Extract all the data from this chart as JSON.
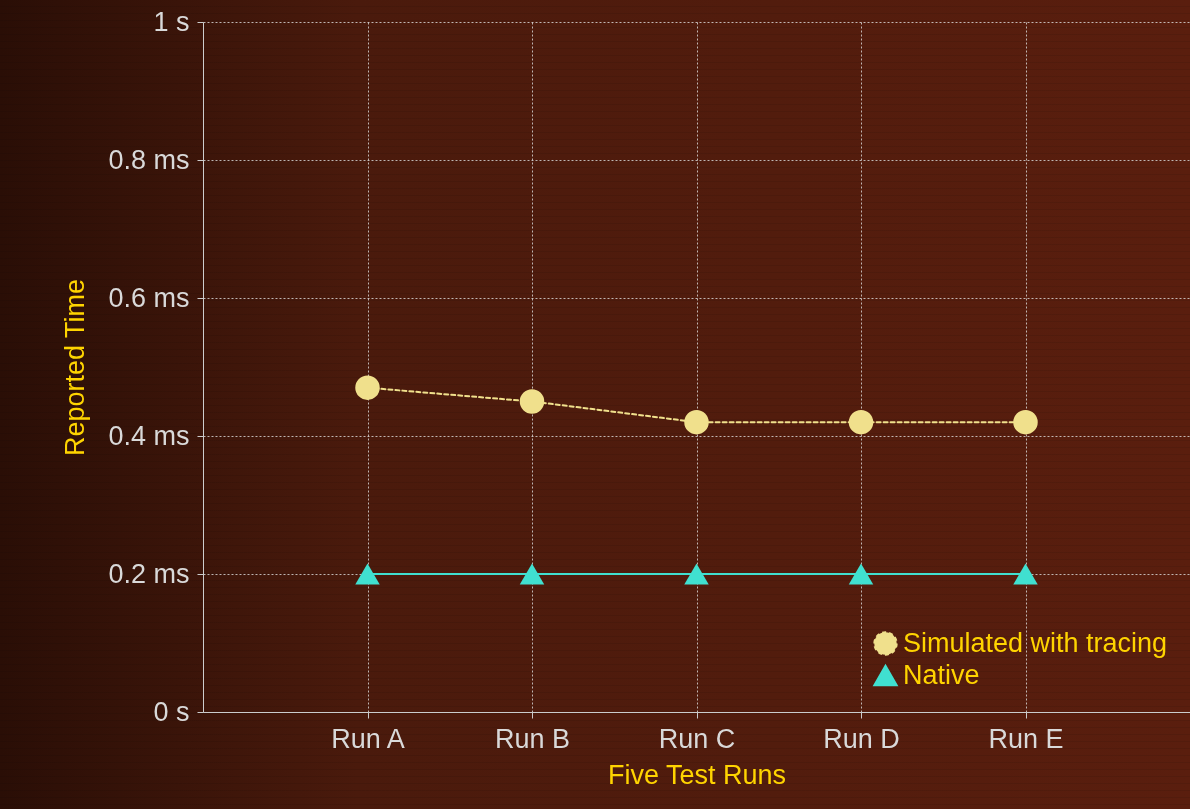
{
  "chart_data": {
    "type": "line",
    "xlabel": "Five Test Runs",
    "ylabel": "Reported Time",
    "categories": [
      "Run A",
      "Run B",
      "Run C",
      "Run D",
      "Run E"
    ],
    "series": [
      {
        "name": "Simulated with tracing",
        "color": "#f0e08c",
        "values": [
          0.47,
          0.45,
          0.42,
          0.42,
          0.42
        ],
        "marker": "circle",
        "line_style": "dashed"
      },
      {
        "name": "Native",
        "color": "#40e0d0",
        "values": [
          0.2,
          0.2,
          0.2,
          0.2,
          0.2
        ],
        "marker": "triangle",
        "line_style": "solid"
      }
    ],
    "ylim": [
      0,
      1
    ],
    "yticks": [
      {
        "value": 0,
        "label": "0  s"
      },
      {
        "value": 0.2,
        "label": "0.2 ms"
      },
      {
        "value": 0.4,
        "label": "0.4 ms"
      },
      {
        "value": 0.6,
        "label": "0.6 ms"
      },
      {
        "value": 0.8,
        "label": "0.8 ms"
      },
      {
        "value": 1,
        "label": "1  s"
      }
    ],
    "grid": true,
    "legend": "bottom right"
  }
}
